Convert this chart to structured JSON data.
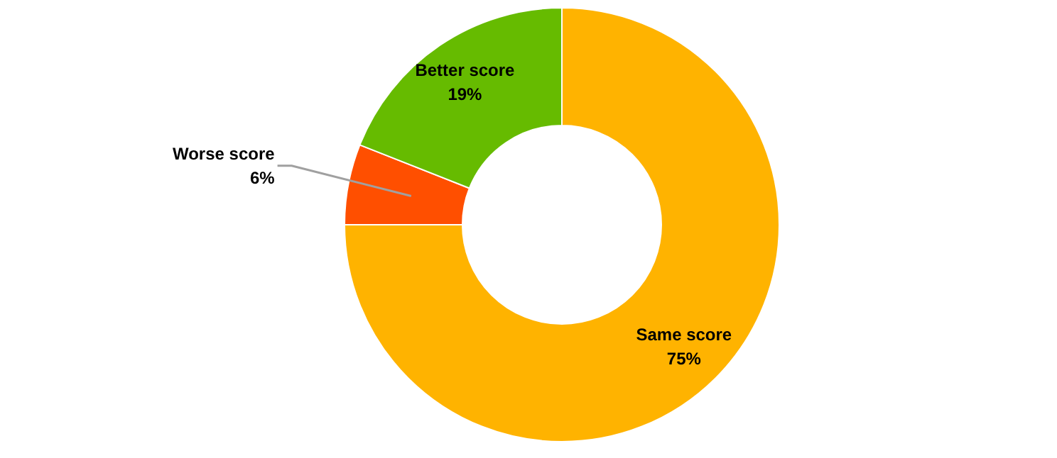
{
  "chart_data": {
    "type": "donut",
    "categories": [
      "Same score",
      "Worse score",
      "Better score"
    ],
    "values": [
      75,
      6,
      19
    ],
    "colors": [
      "#ffb300",
      "#ff4f00",
      "#66bb00"
    ],
    "value_labels": [
      "75%",
      "6%",
      "19%"
    ],
    "legend": false
  }
}
